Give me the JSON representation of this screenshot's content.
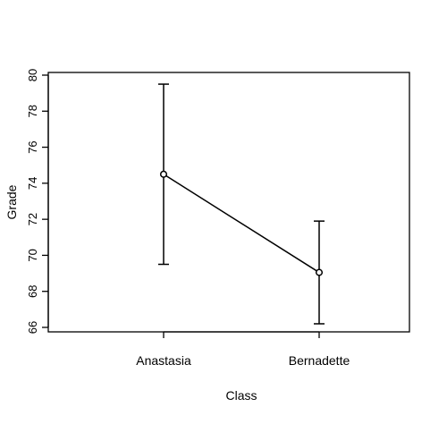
{
  "chart_data": {
    "type": "line",
    "title": "",
    "xlabel": "Class",
    "ylabel": "Grade",
    "categories": [
      "Anastasia",
      "Bernadette"
    ],
    "series": [
      {
        "values": [
          74.5,
          69.05
        ],
        "error_low": [
          69.5,
          66.2
        ],
        "error_high": [
          79.5,
          71.9
        ]
      }
    ],
    "ylim": [
      65.5,
      80.2
    ],
    "yticks": [
      66,
      68,
      70,
      72,
      74,
      76,
      78,
      80
    ],
    "grid": false,
    "legend": "none",
    "color": "#000000"
  }
}
